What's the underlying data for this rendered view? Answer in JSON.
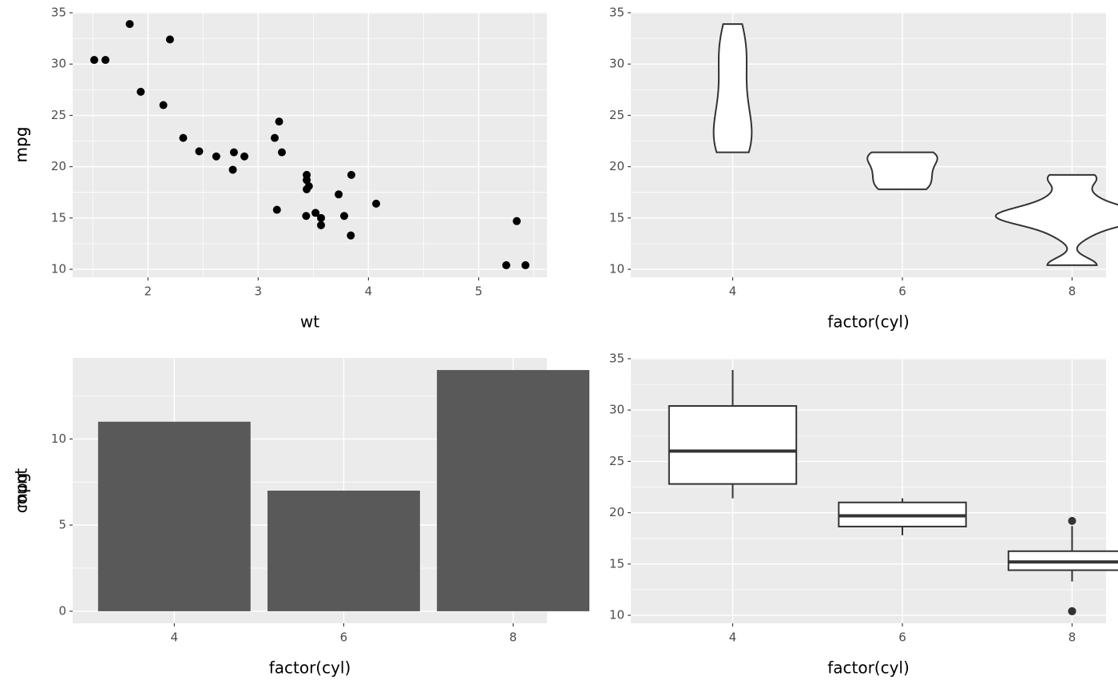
{
  "chart_data": [
    {
      "type": "scatter",
      "x_label": "wt",
      "y_label": "mpg",
      "color": "#000000",
      "x": [
        2.62,
        2.875,
        2.32,
        3.215,
        3.44,
        3.46,
        3.57,
        3.19,
        3.15,
        3.44,
        3.44,
        4.07,
        3.73,
        3.78,
        5.25,
        5.424,
        5.345,
        2.2,
        1.615,
        1.835,
        2.465,
        3.52,
        3.435,
        3.84,
        3.845,
        1.935,
        2.14,
        1.513,
        3.17,
        2.77,
        3.57,
        2.78
      ],
      "values": [
        21.0,
        21.0,
        22.8,
        21.4,
        18.7,
        18.1,
        14.3,
        24.4,
        22.8,
        19.2,
        17.8,
        16.4,
        17.3,
        15.2,
        10.4,
        10.4,
        14.7,
        32.4,
        30.4,
        33.9,
        21.5,
        15.5,
        15.2,
        13.3,
        19.2,
        27.3,
        26.0,
        30.4,
        15.8,
        19.7,
        15.0,
        21.4
      ],
      "xlim": [
        1.3175,
        5.6196
      ],
      "xticks": [
        2,
        3,
        4,
        5
      ],
      "minor_xticks": [
        1.5,
        2.5,
        3.5,
        4.5,
        5.5
      ],
      "ylim": [
        9.225,
        35.075
      ],
      "yticks": [
        10,
        15,
        20,
        25,
        30,
        35
      ],
      "minor_yticks": [
        12.5,
        17.5,
        22.5,
        27.5,
        32.5
      ],
      "grid": true
    },
    {
      "type": "violin",
      "x_label": "factor(cyl)",
      "y_label": "mpg",
      "color": "#ffffff",
      "categories": [
        "4",
        "6",
        "8"
      ],
      "groups": [
        [
          22.8,
          24.4,
          22.8,
          32.4,
          30.4,
          33.9,
          21.5,
          27.3,
          26.0,
          30.4,
          21.4
        ],
        [
          21.0,
          21.0,
          21.4,
          18.1,
          19.2,
          17.8,
          19.7
        ],
        [
          18.7,
          14.3,
          16.4,
          17.3,
          15.2,
          10.4,
          10.4,
          14.7,
          15.5,
          15.2,
          13.3,
          19.2,
          15.8,
          15.0
        ]
      ],
      "ylim": [
        9.225,
        35.075
      ],
      "yticks": [
        10,
        15,
        20,
        25,
        30,
        35
      ],
      "minor_yticks": [
        12.5,
        17.5,
        22.5,
        27.5,
        32.5
      ],
      "grid": true
    },
    {
      "type": "bar",
      "x_label": "factor(cyl)",
      "y_label": "count",
      "color": "#595959",
      "categories": [
        "4",
        "6",
        "8"
      ],
      "values": [
        11,
        7,
        14
      ],
      "ylim": [
        -0.7,
        14.7
      ],
      "yticks": [
        0,
        5,
        10
      ],
      "minor_yticks": [
        2.5,
        7.5,
        12.5
      ],
      "grid": true
    },
    {
      "type": "box",
      "x_label": "factor(cyl)",
      "y_label": "mpg",
      "color": "#ffffff",
      "categories": [
        "4",
        "6",
        "8"
      ],
      "boxes": [
        {
          "min": 21.4,
          "q1": 22.8,
          "median": 26.0,
          "q3": 30.4,
          "max": 33.9,
          "outliers": []
        },
        {
          "min": 17.8,
          "q1": 18.65,
          "median": 19.7,
          "q3": 21.0,
          "max": 21.4,
          "outliers": []
        },
        {
          "min": 13.3,
          "q1": 14.4,
          "median": 15.2,
          "q3": 16.25,
          "max": 18.7,
          "outliers": [
            10.4,
            10.4,
            19.2
          ]
        }
      ],
      "ylim": [
        9.225,
        35.075
      ],
      "yticks": [
        10,
        15,
        20,
        25,
        30,
        35
      ],
      "minor_yticks": [
        12.5,
        17.5,
        22.5,
        27.5,
        32.5
      ],
      "grid": true
    }
  ]
}
